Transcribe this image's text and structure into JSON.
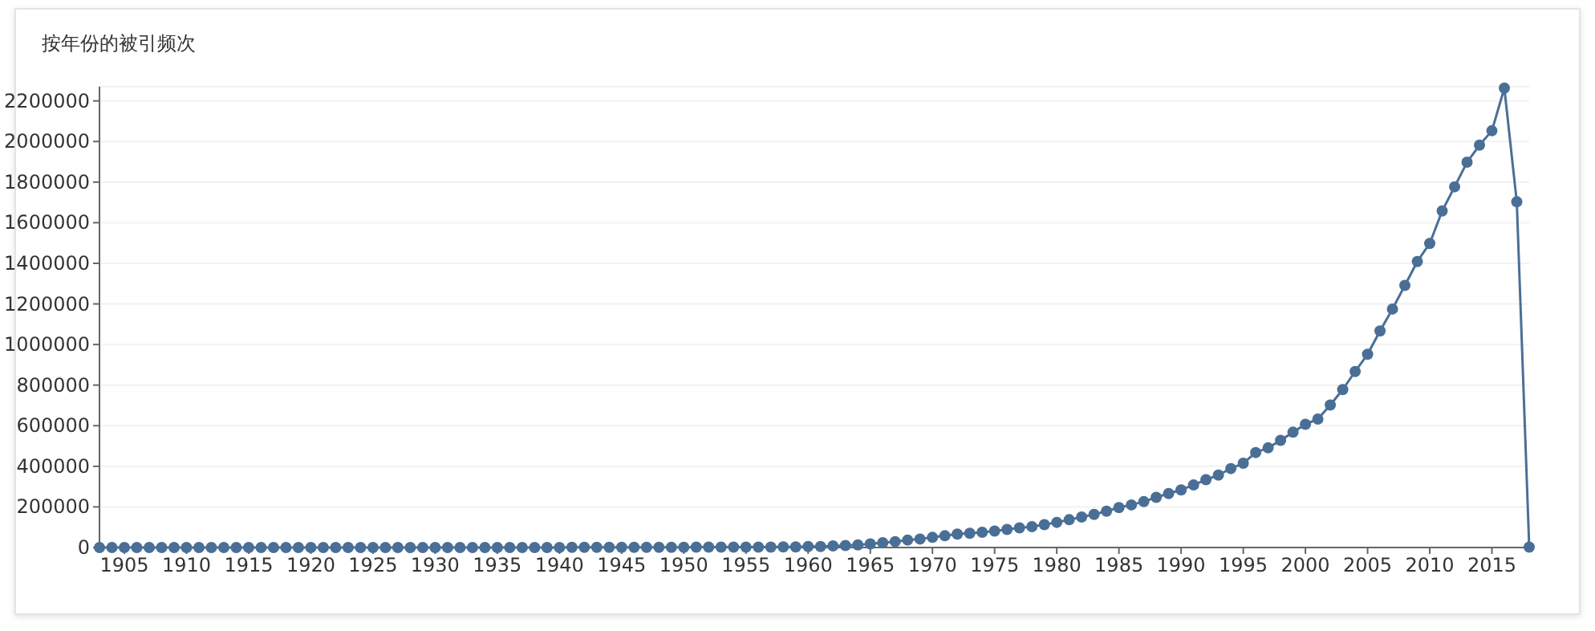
{
  "chart_data": {
    "type": "line",
    "title": "按年份的被引频次",
    "x": [
      1903,
      1904,
      1905,
      1906,
      1907,
      1908,
      1909,
      1910,
      1911,
      1912,
      1913,
      1914,
      1915,
      1916,
      1917,
      1918,
      1919,
      1920,
      1921,
      1922,
      1923,
      1924,
      1925,
      1926,
      1927,
      1928,
      1929,
      1930,
      1931,
      1932,
      1933,
      1934,
      1935,
      1936,
      1937,
      1938,
      1939,
      1940,
      1941,
      1942,
      1943,
      1944,
      1945,
      1946,
      1947,
      1948,
      1949,
      1950,
      1951,
      1952,
      1953,
      1954,
      1955,
      1956,
      1957,
      1958,
      1959,
      1960,
      1961,
      1962,
      1963,
      1964,
      1965,
      1966,
      1967,
      1968,
      1969,
      1970,
      1971,
      1972,
      1973,
      1974,
      1975,
      1976,
      1977,
      1978,
      1979,
      1980,
      1981,
      1982,
      1983,
      1984,
      1985,
      1986,
      1987,
      1988,
      1989,
      1990,
      1991,
      1992,
      1993,
      1994,
      1995,
      1996,
      1997,
      1998,
      1999,
      2000,
      2001,
      2002,
      2003,
      2004,
      2005,
      2006,
      2007,
      2008,
      2009,
      2010,
      2011,
      2012,
      2013,
      2014,
      2015,
      2016,
      2017,
      2018
    ],
    "values": [
      0,
      0,
      0,
      0,
      0,
      0,
      0,
      0,
      0,
      0,
      0,
      0,
      0,
      0,
      0,
      0,
      0,
      0,
      0,
      0,
      0,
      0,
      0,
      0,
      0,
      0,
      0,
      0,
      0,
      0,
      0,
      0,
      0,
      0,
      0,
      0,
      0,
      0,
      1000,
      1000,
      1000,
      1000,
      1000,
      1000,
      1000,
      1000,
      1000,
      1000,
      2000,
      2000,
      2000,
      2000,
      2000,
      2000,
      2000,
      3000,
      3000,
      5000,
      5000,
      8000,
      10000,
      13000,
      18000,
      24000,
      29000,
      37000,
      42000,
      50000,
      58000,
      66000,
      70000,
      75000,
      81000,
      89000,
      97000,
      103000,
      113000,
      124000,
      137000,
      150000,
      163000,
      179000,
      197000,
      210000,
      226000,
      247000,
      266000,
      284000,
      308000,
      334000,
      357000,
      389000,
      415000,
      468000,
      491000,
      528000,
      568000,
      607000,
      633000,
      702000,
      778000,
      867000,
      952000,
      1067000,
      1175000,
      1291000,
      1409000,
      1498000,
      1658000,
      1777000,
      1898000,
      1982000,
      2053000,
      2263000,
      1703000,
      2000
    ],
    "color": "#4a6f96",
    "marker": "circle",
    "grid": "y",
    "xlim": [
      1903,
      2018
    ],
    "ylim": [
      0,
      2270000
    ],
    "xticks": [
      1905,
      1910,
      1915,
      1920,
      1925,
      1930,
      1935,
      1940,
      1945,
      1950,
      1955,
      1960,
      1965,
      1970,
      1975,
      1980,
      1985,
      1990,
      1995,
      2000,
      2005,
      2010,
      2015
    ],
    "yticks": [
      0,
      200000,
      400000,
      600000,
      800000,
      1000000,
      1200000,
      1400000,
      1600000,
      1800000,
      2000000,
      2200000
    ]
  }
}
